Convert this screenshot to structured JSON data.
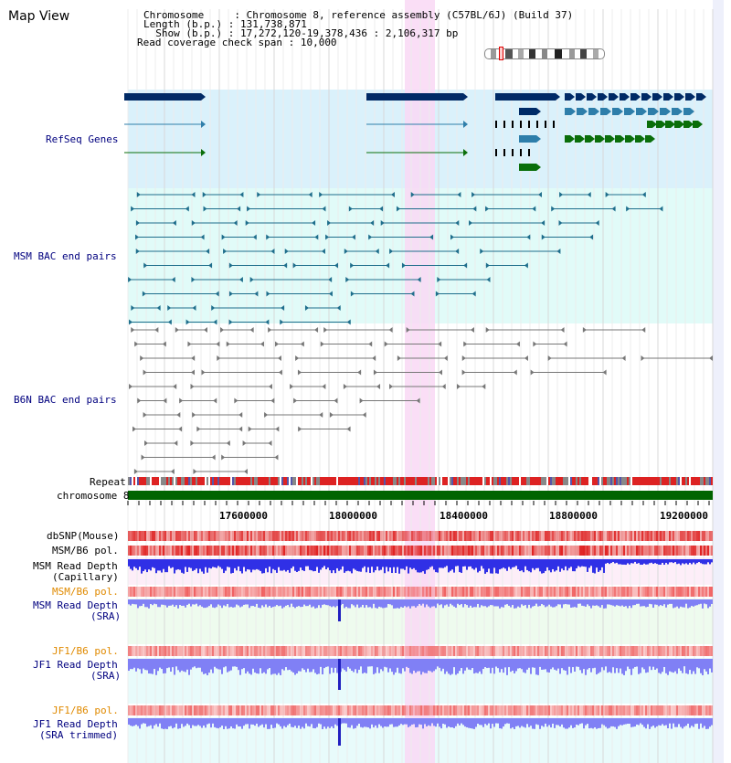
{
  "header": {
    "title": "Map View",
    "chromosome_key": "Chromosome     ",
    "chromosome_val": ": Chromosome 8, reference assembly (C57BL/6J) (Build 37)",
    "length_key": "Length (b.p.) ",
    "length_val": ": 131,738,871",
    "show_key": "  Show (b.p.) ",
    "show_val": ": 17,272,120-19,378,436 : 2,106,317 bp",
    "coverage_key": "Read coverage check span ",
    "coverage_val": ": 10,000"
  },
  "tracks": {
    "refseq": "RefSeq Genes",
    "msm_bac": "MSM BAC end pairs",
    "b6n_bac": "B6N BAC end pairs",
    "repeat": "Repeat",
    "chromosome": "chromosome 8",
    "dbsnp": "dbSNP(Mouse)",
    "msm_b6_pol": "MSM/B6 pol.",
    "msm_depth_cap_1": "MSM Read Depth",
    "msm_depth_cap_2": "(Capillary)",
    "msm_b6_pol2": "MSM/B6 pol.",
    "msm_depth_sra_1": "MSM Read Depth",
    "msm_depth_sra_2": "(SRA)",
    "jf1_b6_pol": "JF1/B6 pol.",
    "jf1_depth_sra_1": "JF1 Read Depth",
    "jf1_depth_sra_2": "(SRA)",
    "jf1_b6_pol2": "JF1/B6 pol.",
    "jf1_depth_trim_1": "JF1 Read Depth",
    "jf1_depth_trim_2": "(SRA trimmed)"
  },
  "axis": {
    "ticks": [
      "17600000",
      "18000000",
      "18400000",
      "18800000",
      "19200000"
    ]
  },
  "colors": {
    "refseq_band": "#daf1fb",
    "bac_band": "#e1fbf8",
    "highlight": "#f9d8f4",
    "gene_dark": "#002a66",
    "gene_mid": "#2e7eaa",
    "gene_green": "#0a6e0a",
    "msm_pair": "#1f6e8c",
    "b6n_pair": "#777777",
    "chrom_green": "#006400",
    "label_blue": "#00007f",
    "label_orange": "#e08a00",
    "depth_blue": "#3030e6",
    "depth_light": "#8080f5"
  }
}
